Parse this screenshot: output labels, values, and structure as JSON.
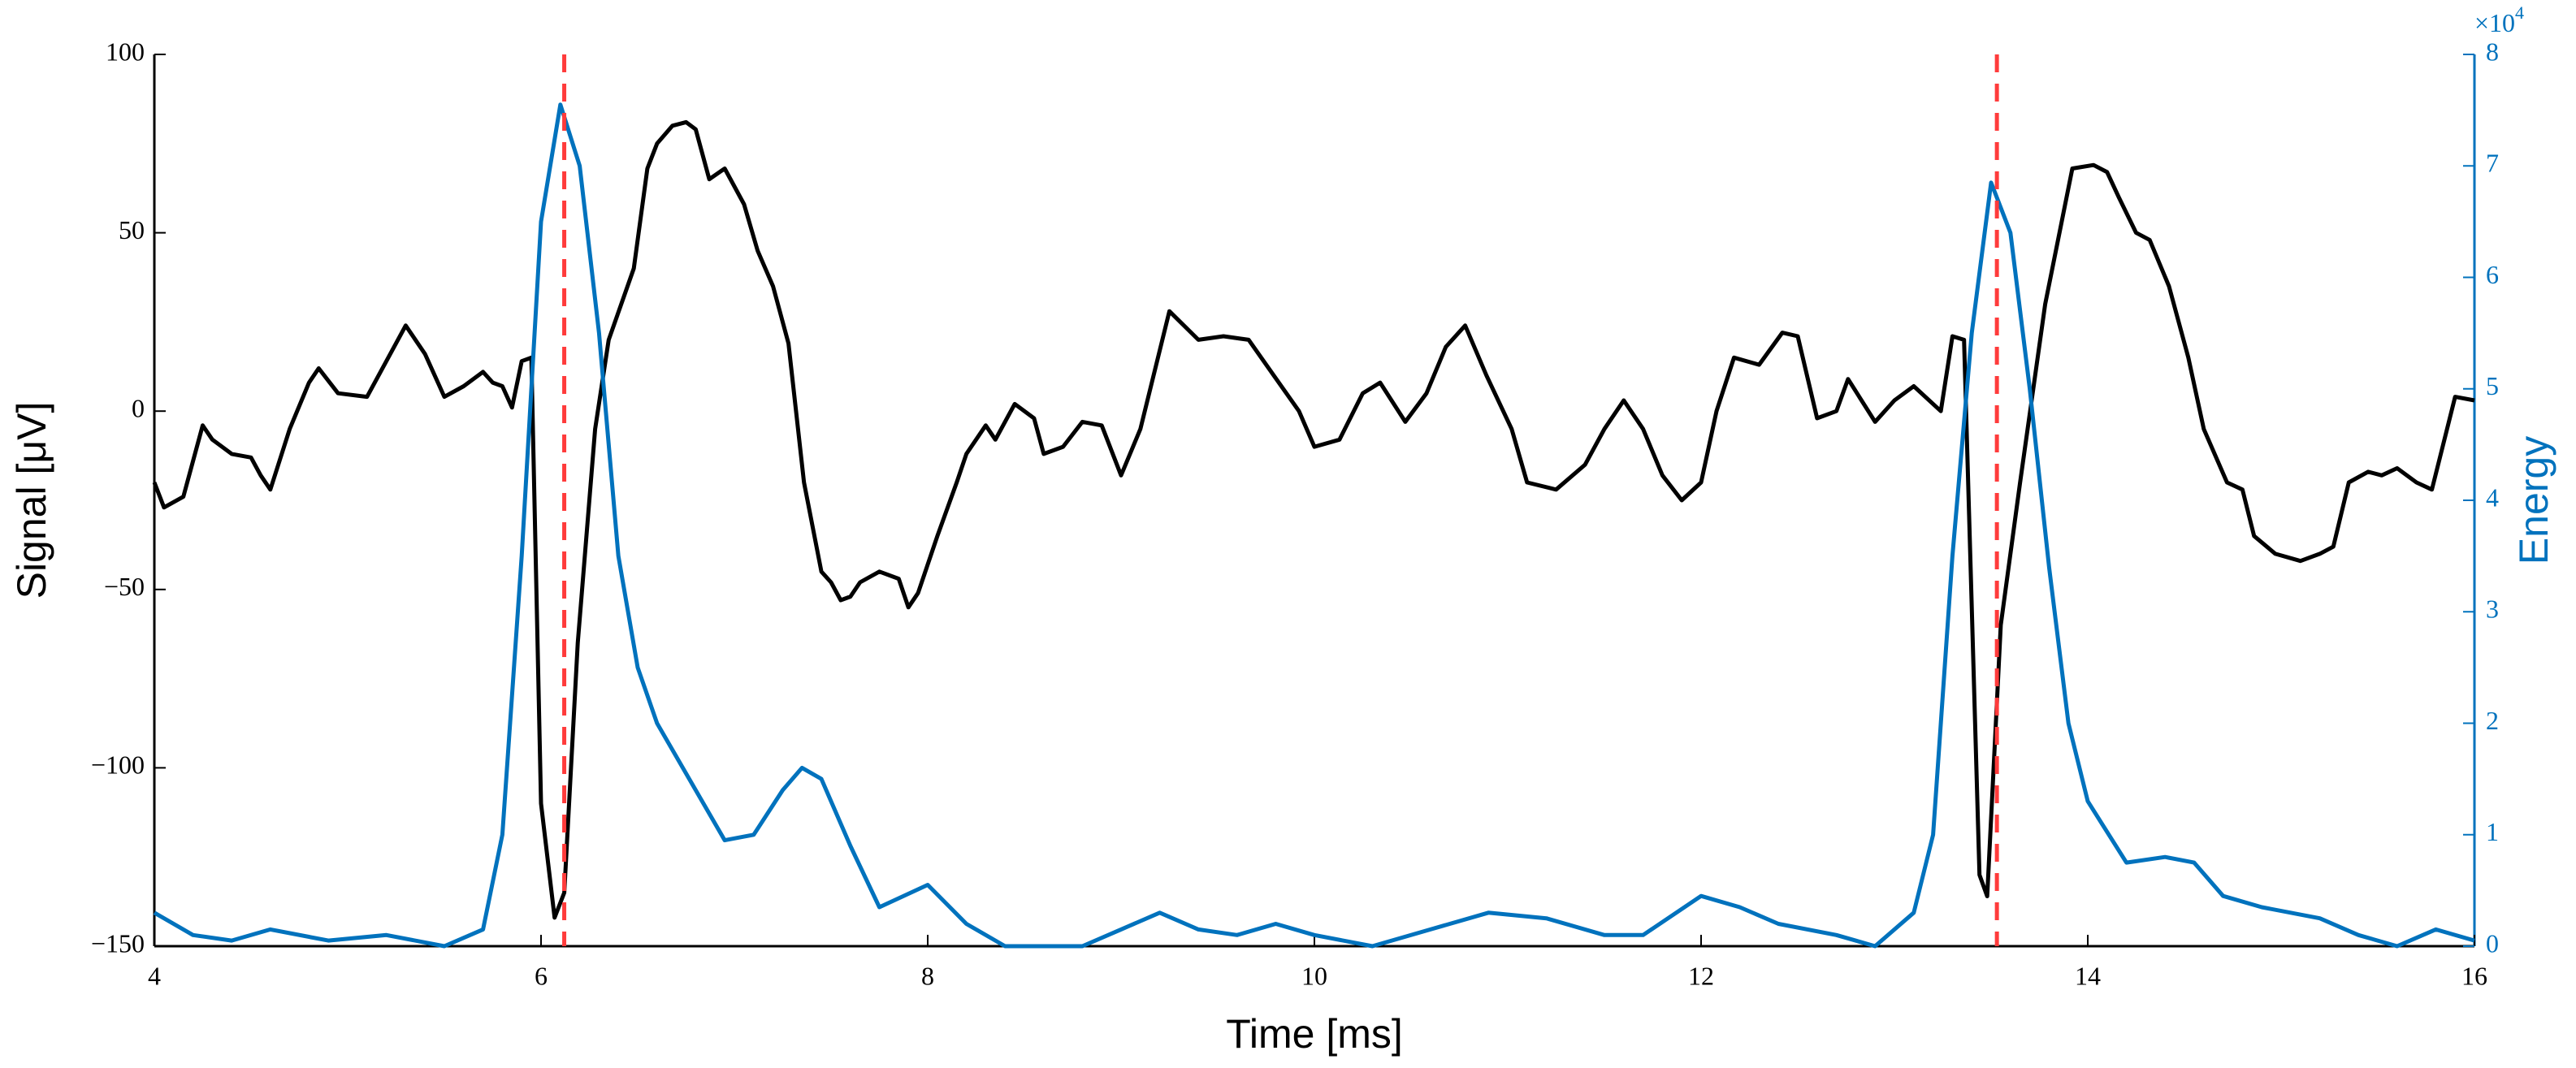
{
  "chart_data": {
    "type": "line",
    "xlabel": "Time [ms]",
    "ylabel": "Signal [μV]",
    "y2label": "Energy",
    "y2_multiplier": {
      "base": "×10",
      "power": "4"
    },
    "xlim": [
      4,
      16
    ],
    "xticks": [
      4,
      6,
      8,
      10,
      12,
      14,
      16
    ],
    "ylim": [
      -150,
      100
    ],
    "yticks": [
      {
        "value": -150,
        "label": "−150"
      },
      {
        "value": -100,
        "label": "−100"
      },
      {
        "value": -50,
        "label": "−50"
      },
      0,
      50,
      100
    ],
    "y2lim": [
      0,
      8
    ],
    "y2ticks": [
      0,
      1,
      2,
      3,
      4,
      5,
      6,
      7,
      8
    ],
    "axis_color": "#000000",
    "y2_axis_color": "#0072bd",
    "grid": false,
    "series": [
      {
        "color": "#000000",
        "axis": "y",
        "x": [
          4.0,
          4.05,
          4.15,
          4.25,
          4.3,
          4.4,
          4.5,
          4.55,
          4.6,
          4.7,
          4.8,
          4.85,
          4.95,
          5.1,
          5.2,
          5.3,
          5.4,
          5.5,
          5.6,
          5.7,
          5.75,
          5.8,
          5.85,
          5.9,
          5.95,
          6.0,
          6.07,
          6.12,
          6.19,
          6.28,
          6.35,
          6.48,
          6.55,
          6.6,
          6.68,
          6.75,
          6.8,
          6.87,
          6.95,
          7.05,
          7.12,
          7.2,
          7.28,
          7.36,
          7.45,
          7.5,
          7.55,
          7.6,
          7.65,
          7.75,
          7.85,
          7.9,
          7.95,
          8.05,
          8.15,
          8.2,
          8.3,
          8.35,
          8.45,
          8.55,
          8.6,
          8.7,
          8.8,
          8.9,
          9.0,
          9.1,
          9.25,
          9.4,
          9.53,
          9.66,
          9.79,
          9.92,
          10.0,
          10.13,
          10.25,
          10.34,
          10.47,
          10.58,
          10.68,
          10.78,
          10.89,
          11.02,
          11.1,
          11.25,
          11.4,
          11.5,
          11.6,
          11.7,
          11.8,
          11.9,
          12.0,
          12.08,
          12.17,
          12.3,
          12.42,
          12.5,
          12.6,
          12.7,
          12.76,
          12.9,
          13.0,
          13.1,
          13.24,
          13.3,
          13.36,
          13.44,
          13.48,
          13.55,
          13.65,
          13.78,
          13.92,
          14.03,
          14.1,
          14.16,
          14.25,
          14.32,
          14.42,
          14.52,
          14.6,
          14.72,
          14.8,
          14.86,
          14.97,
          15.1,
          15.2,
          15.27,
          15.35,
          15.45,
          15.52,
          15.6,
          15.7,
          15.78,
          15.9,
          16.0
        ],
        "values": [
          -20,
          -27,
          -24,
          -4,
          -8,
          -12,
          -13,
          -18,
          -22,
          -5,
          8,
          12,
          5,
          4,
          14,
          24,
          16,
          4,
          7,
          11,
          8,
          7,
          1,
          14,
          15,
          -110,
          -142,
          -135,
          -65,
          -5,
          20,
          40,
          68,
          75,
          80,
          81,
          79,
          65,
          68,
          58,
          45,
          35,
          19,
          -20,
          -45,
          -48,
          -53,
          -52,
          -48,
          -45,
          -47,
          -55,
          -51,
          -35,
          -20,
          -12,
          -4,
          -8,
          2,
          -2,
          -12,
          -10,
          -3,
          -4,
          -18,
          -5,
          28,
          20,
          21,
          20,
          10,
          0,
          -10,
          -8,
          5,
          8,
          -3,
          5,
          18,
          24,
          10,
          -5,
          -20,
          -22,
          -15,
          -5,
          3,
          -5,
          -18,
          -25,
          -20,
          0,
          15,
          13,
          22,
          21,
          -2,
          0,
          9,
          -3,
          3,
          7,
          0,
          21,
          20,
          -130,
          -136,
          -60,
          -20,
          30,
          68,
          69,
          67,
          60,
          50,
          48,
          35,
          15,
          -5,
          -20,
          -22,
          -35,
          -40,
          -42,
          -40,
          -38,
          -20,
          -17,
          -18,
          -16,
          -20,
          -22,
          4,
          3
        ]
      },
      {
        "color": "#0072bd",
        "axis": "y2",
        "x": [
          4.0,
          4.2,
          4.4,
          4.6,
          4.9,
          5.2,
          5.5,
          5.7,
          5.8,
          5.9,
          6.0,
          6.1,
          6.2,
          6.3,
          6.4,
          6.5,
          6.6,
          6.8,
          6.95,
          7.1,
          7.25,
          7.35,
          7.45,
          7.6,
          7.75,
          8.0,
          8.2,
          8.4,
          8.8,
          9.0,
          9.2,
          9.4,
          9.6,
          9.8,
          10.0,
          10.3,
          10.6,
          10.9,
          11.2,
          11.5,
          11.7,
          12.0,
          12.2,
          12.4,
          12.7,
          12.9,
          13.1,
          13.2,
          13.3,
          13.4,
          13.5,
          13.6,
          13.7,
          13.8,
          13.9,
          14.0,
          14.2,
          14.4,
          14.55,
          14.7,
          14.9,
          15.2,
          15.4,
          15.6,
          15.8,
          16.0
        ],
        "values": [
          0.3,
          0.1,
          0.05,
          0.15,
          0.05,
          0.1,
          0.0,
          0.15,
          1.0,
          3.5,
          6.5,
          7.55,
          7.0,
          5.5,
          3.5,
          2.5,
          2.0,
          1.4,
          0.95,
          1.0,
          1.4,
          1.6,
          1.5,
          0.9,
          0.35,
          0.55,
          0.2,
          0.0,
          0.0,
          0.15,
          0.3,
          0.15,
          0.1,
          0.2,
          0.1,
          0.0,
          0.15,
          0.3,
          0.25,
          0.1,
          0.1,
          0.45,
          0.35,
          0.2,
          0.1,
          0.0,
          0.3,
          1.0,
          3.5,
          5.5,
          6.85,
          6.4,
          5.0,
          3.4,
          2.0,
          1.3,
          0.75,
          0.8,
          0.75,
          0.45,
          0.35,
          0.25,
          0.1,
          0.0,
          0.15,
          0.05
        ]
      }
    ],
    "vlines": {
      "x": [
        6.12,
        13.53
      ],
      "color": "#ff3b3b"
    }
  }
}
